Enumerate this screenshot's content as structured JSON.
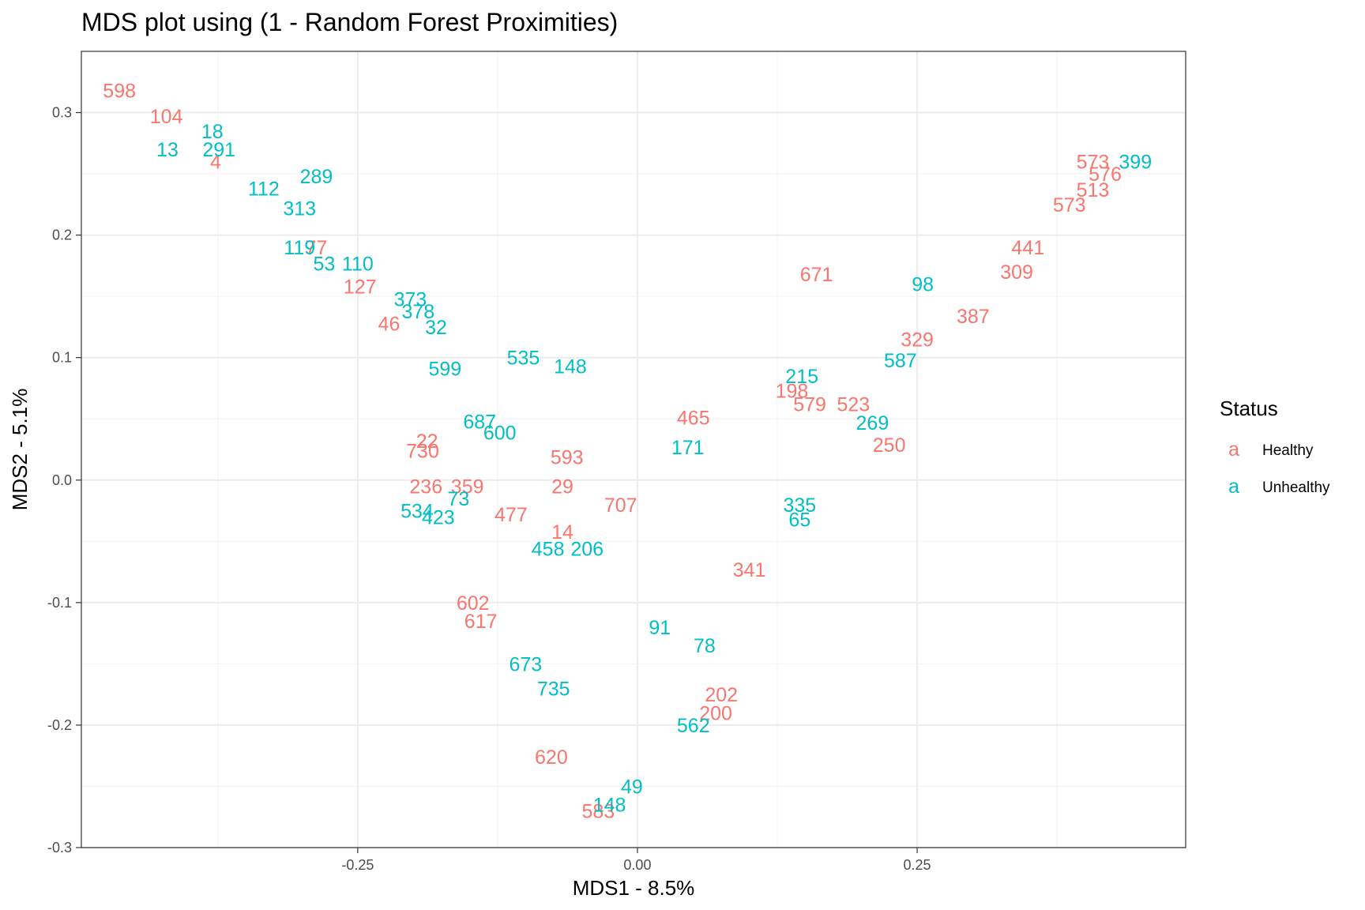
{
  "chart_data": {
    "type": "scatter",
    "title": "MDS plot using (1 - Random Forest Proximities)",
    "xlabel": "MDS1 - 8.5%",
    "ylabel": "MDS2 - 5.1%",
    "xlim": [
      -0.497,
      0.49
    ],
    "ylim": [
      -0.3,
      0.35
    ],
    "xticks": [
      -0.25,
      0.0,
      0.25
    ],
    "xtick_labels": [
      "-0.25",
      "0.00",
      "0.25"
    ],
    "yticks": [
      -0.3,
      -0.2,
      -0.1,
      0.0,
      0.1,
      0.2,
      0.3
    ],
    "ytick_labels": [
      "-0.3",
      "-0.2",
      "-0.1",
      "0.0",
      "0.1",
      "0.2",
      "0.3"
    ],
    "grid": true,
    "legend": {
      "title": "Status",
      "placement": "right",
      "key_glyph": "a",
      "entries": [
        {
          "label": "Healthy",
          "color": "#F8766D"
        },
        {
          "label": "Unhealthy",
          "color": "#00BFC4"
        }
      ]
    },
    "series": [
      {
        "name": "Healthy",
        "color": "#F8766D",
        "points": [
          {
            "label": "598",
            "x": -0.463,
            "y": 0.318
          },
          {
            "label": "104",
            "x": -0.421,
            "y": 0.297
          },
          {
            "label": "4",
            "x": -0.377,
            "y": 0.26
          },
          {
            "label": "77",
            "x": -0.287,
            "y": 0.19
          },
          {
            "label": "127",
            "x": -0.248,
            "y": 0.158
          },
          {
            "label": "46",
            "x": -0.222,
            "y": 0.128
          },
          {
            "label": "671",
            "x": 0.16,
            "y": 0.168
          },
          {
            "label": "22",
            "x": -0.188,
            "y": 0.032
          },
          {
            "label": "730",
            "x": -0.192,
            "y": 0.024
          },
          {
            "label": "236",
            "x": -0.189,
            "y": -0.005
          },
          {
            "label": "359",
            "x": -0.152,
            "y": -0.005
          },
          {
            "label": "593",
            "x": -0.063,
            "y": 0.019
          },
          {
            "label": "29",
            "x": -0.067,
            "y": -0.005
          },
          {
            "label": "477",
            "x": -0.113,
            "y": -0.028
          },
          {
            "label": "14",
            "x": -0.067,
            "y": -0.042
          },
          {
            "label": "707",
            "x": -0.015,
            "y": -0.02
          },
          {
            "label": "465",
            "x": 0.05,
            "y": 0.051
          },
          {
            "label": "198",
            "x": 0.138,
            "y": 0.073
          },
          {
            "label": "579",
            "x": 0.154,
            "y": 0.062
          },
          {
            "label": "523",
            "x": 0.193,
            "y": 0.062
          },
          {
            "label": "329",
            "x": 0.25,
            "y": 0.115
          },
          {
            "label": "387",
            "x": 0.3,
            "y": 0.134
          },
          {
            "label": "309",
            "x": 0.339,
            "y": 0.17
          },
          {
            "label": "573",
            "x": 0.386,
            "y": 0.225
          },
          {
            "label": "513",
            "x": 0.407,
            "y": 0.237
          },
          {
            "label": "576",
            "x": 0.418,
            "y": 0.25
          },
          {
            "label": "573",
            "x": 0.407,
            "y": 0.26
          },
          {
            "label": "441",
            "x": 0.349,
            "y": 0.19
          },
          {
            "label": "250",
            "x": 0.225,
            "y": 0.029
          },
          {
            "label": "602",
            "x": -0.147,
            "y": -0.1
          },
          {
            "label": "617",
            "x": -0.14,
            "y": -0.115
          },
          {
            "label": "200",
            "x": 0.07,
            "y": -0.19
          },
          {
            "label": "202",
            "x": 0.075,
            "y": -0.175
          },
          {
            "label": "620",
            "x": -0.077,
            "y": -0.226
          },
          {
            "label": "583",
            "x": -0.035,
            "y": -0.27
          },
          {
            "label": "341",
            "x": 0.1,
            "y": -0.073
          }
        ]
      },
      {
        "name": "Unhealthy",
        "color": "#00BFC4",
        "points": [
          {
            "label": "13",
            "x": -0.42,
            "y": 0.27
          },
          {
            "label": "291",
            "x": -0.374,
            "y": 0.27
          },
          {
            "label": "18",
            "x": -0.38,
            "y": 0.285
          },
          {
            "label": "289",
            "x": -0.287,
            "y": 0.248
          },
          {
            "label": "112",
            "x": -0.334,
            "y": 0.238
          },
          {
            "label": "313",
            "x": -0.302,
            "y": 0.222
          },
          {
            "label": "119",
            "x": -0.302,
            "y": 0.19
          },
          {
            "label": "53",
            "x": -0.28,
            "y": 0.177
          },
          {
            "label": "110",
            "x": -0.25,
            "y": 0.177
          },
          {
            "label": "373",
            "x": -0.203,
            "y": 0.148
          },
          {
            "label": "378",
            "x": -0.196,
            "y": 0.138
          },
          {
            "label": "32",
            "x": -0.18,
            "y": 0.125
          },
          {
            "label": "599",
            "x": -0.172,
            "y": 0.091
          },
          {
            "label": "535",
            "x": -0.102,
            "y": 0.1
          },
          {
            "label": "148",
            "x": -0.06,
            "y": 0.093
          },
          {
            "label": "687",
            "x": -0.141,
            "y": 0.048
          },
          {
            "label": "600",
            "x": -0.123,
            "y": 0.039
          },
          {
            "label": "73",
            "x": -0.16,
            "y": -0.015
          },
          {
            "label": "423",
            "x": -0.178,
            "y": -0.03
          },
          {
            "label": "534",
            "x": -0.197,
            "y": -0.025
          },
          {
            "label": "458",
            "x": -0.08,
            "y": -0.056
          },
          {
            "label": "206",
            "x": -0.045,
            "y": -0.056
          },
          {
            "label": "171",
            "x": 0.045,
            "y": 0.027
          },
          {
            "label": "215",
            "x": 0.147,
            "y": 0.085
          },
          {
            "label": "269",
            "x": 0.21,
            "y": 0.047
          },
          {
            "label": "587",
            "x": 0.235,
            "y": 0.098
          },
          {
            "label": "98",
            "x": 0.255,
            "y": 0.16
          },
          {
            "label": "399",
            "x": 0.445,
            "y": 0.26
          },
          {
            "label": "335",
            "x": 0.145,
            "y": -0.02
          },
          {
            "label": "65",
            "x": 0.145,
            "y": -0.032
          },
          {
            "label": "78",
            "x": 0.06,
            "y": -0.135
          },
          {
            "label": "562",
            "x": 0.05,
            "y": -0.2
          },
          {
            "label": "673",
            "x": -0.1,
            "y": -0.15
          },
          {
            "label": "735",
            "x": -0.075,
            "y": -0.17
          },
          {
            "label": "148",
            "x": -0.025,
            "y": -0.265
          },
          {
            "label": "49",
            "x": -0.005,
            "y": -0.25
          },
          {
            "label": "91",
            "x": 0.02,
            "y": -0.12
          }
        ]
      }
    ]
  }
}
